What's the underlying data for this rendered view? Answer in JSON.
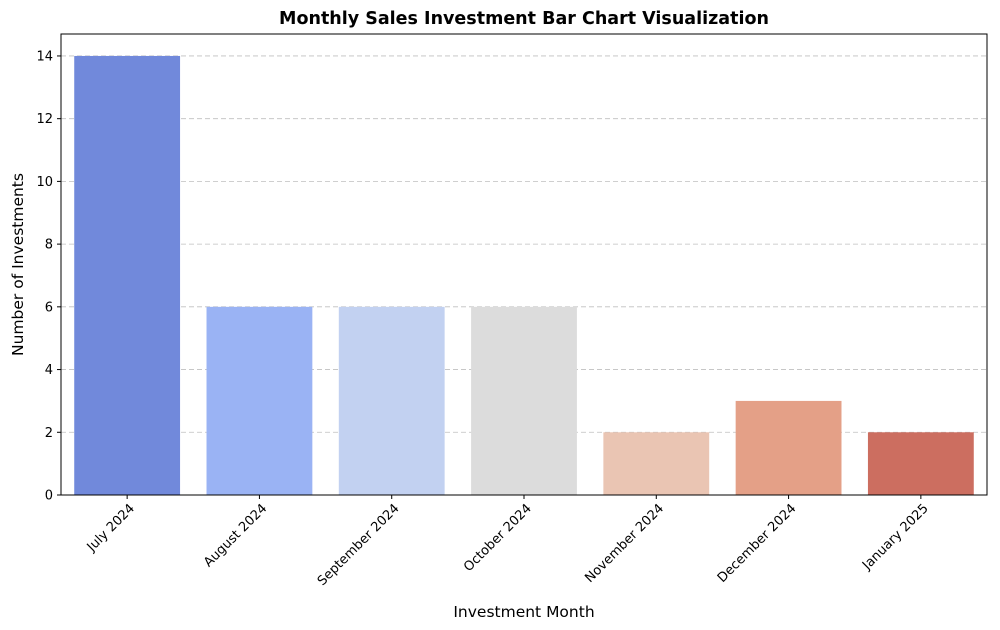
{
  "chart_data": {
    "type": "bar",
    "title": "Monthly Sales Investment Bar Chart Visualization",
    "xlabel": "Investment Month",
    "ylabel": "Number of Investments",
    "categories": [
      "July 2024",
      "August 2024",
      "September 2024",
      "October 2024",
      "November 2024",
      "December 2024",
      "January 2025"
    ],
    "values": [
      14,
      6,
      6,
      6,
      2,
      3,
      2
    ],
    "colors": [
      "#7189db",
      "#9ab3f4",
      "#c2d1f1",
      "#dcdcdc",
      "#eac5b3",
      "#e4a087",
      "#cc6e60"
    ],
    "ylim": [
      0,
      14.7
    ],
    "yticks": [
      0,
      2,
      4,
      6,
      8,
      10,
      12,
      14
    ],
    "grid": "y-dashed"
  }
}
